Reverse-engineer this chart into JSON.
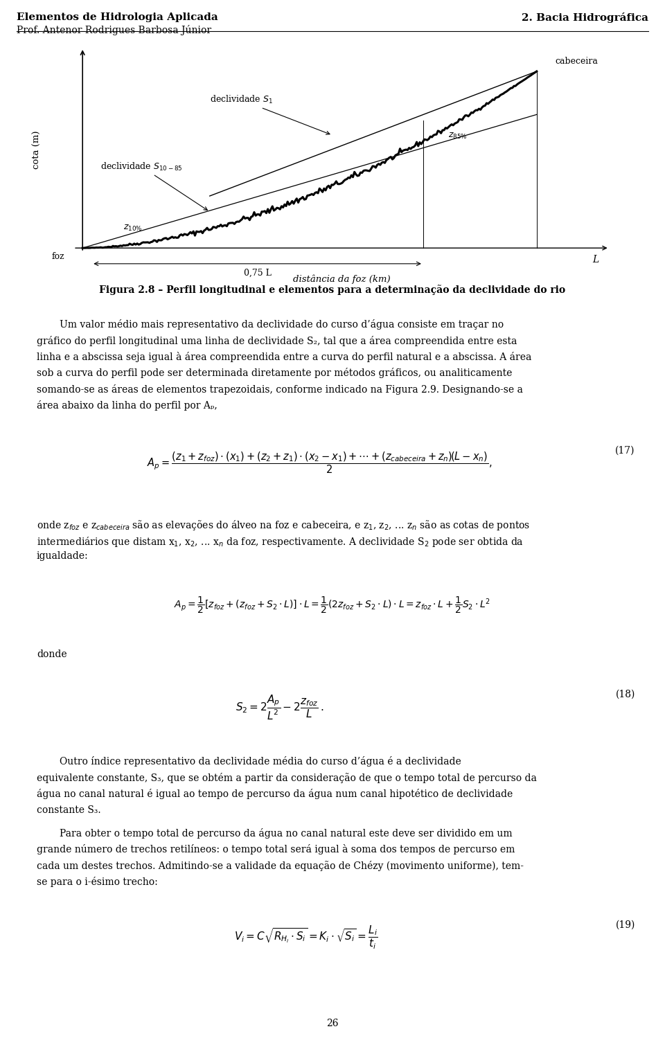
{
  "title_left": "Elementos de Hidrologia Aplicada",
  "title_right": "2. Bacia Hidrográfica",
  "subtitle_left": "Prof. Antenor Rodrigues Barbosa Júnior",
  "figure_caption": "Figura 2.8 – Perfil longitudinal e elementos para a determinação da declividade do rio",
  "xlabel": "distância da foz (km)",
  "ylabel": "cota (m)",
  "page_number": "26",
  "background_color": "#ffffff",
  "text_color": "#000000"
}
